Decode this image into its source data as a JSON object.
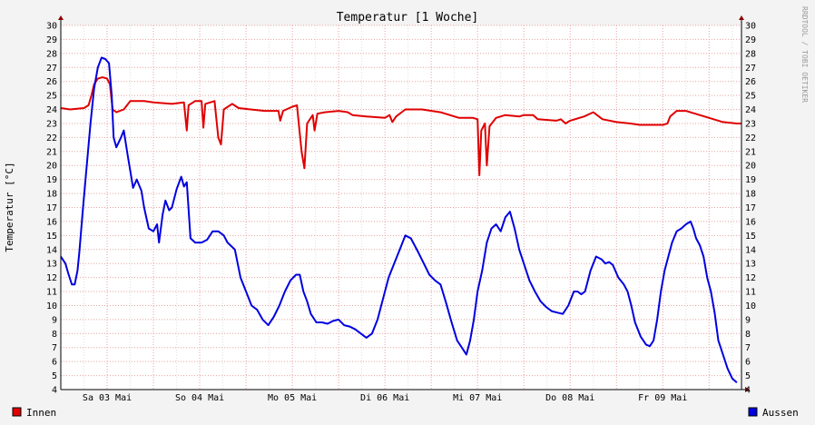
{
  "chart_data": {
    "type": "line",
    "title": "Temperatur [1 Woche]",
    "ylabel": "Temperatur [°C]",
    "xlabel": "",
    "watermark": "RRDTOOL / TOBI OETIKER",
    "ylim": [
      4,
      30
    ],
    "y_ticks": [
      4,
      5,
      6,
      7,
      8,
      9,
      10,
      11,
      12,
      13,
      14,
      15,
      16,
      17,
      18,
      19,
      20,
      21,
      22,
      23,
      24,
      25,
      26,
      27,
      28,
      29,
      30
    ],
    "x_range_days": [
      0,
      7.35
    ],
    "x_ticks": [
      {
        "label": "Sa 03 Mai",
        "day": 0.5
      },
      {
        "label": "So 04 Mai",
        "day": 1.5
      },
      {
        "label": "Mo 05 Mai",
        "day": 2.5
      },
      {
        "label": "Di 06 Mai",
        "day": 3.5
      },
      {
        "label": "Mi 07 Mai",
        "day": 4.5
      },
      {
        "label": "Do 08 Mai",
        "day": 5.5
      },
      {
        "label": "Fr 09 Mai",
        "day": 6.5
      }
    ],
    "grid": true,
    "legend_position": "bottom",
    "series": [
      {
        "name": "Innen",
        "color": "#e00000",
        "points": [
          [
            0.0,
            24.1
          ],
          [
            0.1,
            24.0
          ],
          [
            0.25,
            24.1
          ],
          [
            0.3,
            24.3
          ],
          [
            0.33,
            25.0
          ],
          [
            0.36,
            25.8
          ],
          [
            0.4,
            26.2
          ],
          [
            0.45,
            26.3
          ],
          [
            0.5,
            26.2
          ],
          [
            0.53,
            25.8
          ],
          [
            0.56,
            24.0
          ],
          [
            0.6,
            23.8
          ],
          [
            0.68,
            24.0
          ],
          [
            0.75,
            24.6
          ],
          [
            0.9,
            24.6
          ],
          [
            1.0,
            24.5
          ],
          [
            1.2,
            24.4
          ],
          [
            1.33,
            24.5
          ],
          [
            1.36,
            22.5
          ],
          [
            1.38,
            24.3
          ],
          [
            1.45,
            24.6
          ],
          [
            1.52,
            24.6
          ],
          [
            1.54,
            22.7
          ],
          [
            1.56,
            24.4
          ],
          [
            1.66,
            24.6
          ],
          [
            1.7,
            22.0
          ],
          [
            1.73,
            21.5
          ],
          [
            1.76,
            24.0
          ],
          [
            1.85,
            24.4
          ],
          [
            1.92,
            24.1
          ],
          [
            2.05,
            24.0
          ],
          [
            2.2,
            23.9
          ],
          [
            2.35,
            23.9
          ],
          [
            2.37,
            23.2
          ],
          [
            2.4,
            23.9
          ],
          [
            2.5,
            24.2
          ],
          [
            2.55,
            24.3
          ],
          [
            2.6,
            21.0
          ],
          [
            2.63,
            19.8
          ],
          [
            2.66,
            23.0
          ],
          [
            2.72,
            23.6
          ],
          [
            2.74,
            22.5
          ],
          [
            2.77,
            23.7
          ],
          [
            2.85,
            23.8
          ],
          [
            3.0,
            23.9
          ],
          [
            3.1,
            23.8
          ],
          [
            3.15,
            23.6
          ],
          [
            3.3,
            23.5
          ],
          [
            3.5,
            23.4
          ],
          [
            3.55,
            23.6
          ],
          [
            3.58,
            23.1
          ],
          [
            3.62,
            23.5
          ],
          [
            3.72,
            24.0
          ],
          [
            3.9,
            24.0
          ],
          [
            4.1,
            23.8
          ],
          [
            4.3,
            23.4
          ],
          [
            4.45,
            23.4
          ],
          [
            4.5,
            23.3
          ],
          [
            4.52,
            19.3
          ],
          [
            4.54,
            22.5
          ],
          [
            4.58,
            23.0
          ],
          [
            4.6,
            20.0
          ],
          [
            4.63,
            22.8
          ],
          [
            4.7,
            23.4
          ],
          [
            4.8,
            23.6
          ],
          [
            4.95,
            23.5
          ],
          [
            5.0,
            23.6
          ],
          [
            5.1,
            23.6
          ],
          [
            5.15,
            23.3
          ],
          [
            5.35,
            23.2
          ],
          [
            5.4,
            23.3
          ],
          [
            5.45,
            23.0
          ],
          [
            5.5,
            23.2
          ],
          [
            5.65,
            23.5
          ],
          [
            5.75,
            23.8
          ],
          [
            5.85,
            23.3
          ],
          [
            6.0,
            23.1
          ],
          [
            6.15,
            23.0
          ],
          [
            6.25,
            22.9
          ],
          [
            6.4,
            22.9
          ],
          [
            6.5,
            22.9
          ],
          [
            6.55,
            23.0
          ],
          [
            6.58,
            23.5
          ],
          [
            6.65,
            23.9
          ],
          [
            6.75,
            23.9
          ],
          [
            6.85,
            23.7
          ],
          [
            7.0,
            23.4
          ],
          [
            7.15,
            23.1
          ],
          [
            7.3,
            23.0
          ],
          [
            7.35,
            23.0
          ]
        ]
      },
      {
        "name": "Aussen",
        "color": "#0000e0",
        "points": [
          [
            0.0,
            13.5
          ],
          [
            0.05,
            13.0
          ],
          [
            0.08,
            12.3
          ],
          [
            0.12,
            11.5
          ],
          [
            0.15,
            11.5
          ],
          [
            0.18,
            12.5
          ],
          [
            0.2,
            13.8
          ],
          [
            0.24,
            17.0
          ],
          [
            0.28,
            20.0
          ],
          [
            0.32,
            23.0
          ],
          [
            0.36,
            25.5
          ],
          [
            0.4,
            27.0
          ],
          [
            0.44,
            27.7
          ],
          [
            0.48,
            27.6
          ],
          [
            0.52,
            27.3
          ],
          [
            0.55,
            25.0
          ],
          [
            0.57,
            22.0
          ],
          [
            0.6,
            21.3
          ],
          [
            0.65,
            22.0
          ],
          [
            0.68,
            22.5
          ],
          [
            0.72,
            20.8
          ],
          [
            0.76,
            19.2
          ],
          [
            0.78,
            18.4
          ],
          [
            0.82,
            19.0
          ],
          [
            0.87,
            18.2
          ],
          [
            0.9,
            17.0
          ],
          [
            0.95,
            15.5
          ],
          [
            1.0,
            15.3
          ],
          [
            1.04,
            15.8
          ],
          [
            1.06,
            14.5
          ],
          [
            1.1,
            16.5
          ],
          [
            1.13,
            17.5
          ],
          [
            1.17,
            16.8
          ],
          [
            1.2,
            17.0
          ],
          [
            1.25,
            18.3
          ],
          [
            1.3,
            19.2
          ],
          [
            1.33,
            18.5
          ],
          [
            1.36,
            18.8
          ],
          [
            1.4,
            14.8
          ],
          [
            1.45,
            14.5
          ],
          [
            1.52,
            14.5
          ],
          [
            1.58,
            14.7
          ],
          [
            1.64,
            15.3
          ],
          [
            1.7,
            15.3
          ],
          [
            1.76,
            15.0
          ],
          [
            1.8,
            14.5
          ],
          [
            1.88,
            14.0
          ],
          [
            1.94,
            12.0
          ],
          [
            2.0,
            11.0
          ],
          [
            2.06,
            10.0
          ],
          [
            2.12,
            9.7
          ],
          [
            2.18,
            9.0
          ],
          [
            2.24,
            8.6
          ],
          [
            2.3,
            9.2
          ],
          [
            2.36,
            10.0
          ],
          [
            2.42,
            11.0
          ],
          [
            2.48,
            11.8
          ],
          [
            2.54,
            12.2
          ],
          [
            2.58,
            12.2
          ],
          [
            2.62,
            11.0
          ],
          [
            2.66,
            10.3
          ],
          [
            2.7,
            9.4
          ],
          [
            2.76,
            8.8
          ],
          [
            2.82,
            8.8
          ],
          [
            2.88,
            8.7
          ],
          [
            2.94,
            8.9
          ],
          [
            3.0,
            9.0
          ],
          [
            3.06,
            8.6
          ],
          [
            3.12,
            8.5
          ],
          [
            3.18,
            8.3
          ],
          [
            3.24,
            8.0
          ],
          [
            3.3,
            7.7
          ],
          [
            3.36,
            8.0
          ],
          [
            3.42,
            9.0
          ],
          [
            3.48,
            10.5
          ],
          [
            3.54,
            12.0
          ],
          [
            3.6,
            13.0
          ],
          [
            3.66,
            14.0
          ],
          [
            3.72,
            15.0
          ],
          [
            3.78,
            14.8
          ],
          [
            3.82,
            14.3
          ],
          [
            3.86,
            13.8
          ],
          [
            3.92,
            13.0
          ],
          [
            3.98,
            12.2
          ],
          [
            4.04,
            11.8
          ],
          [
            4.1,
            11.5
          ],
          [
            4.16,
            10.2
          ],
          [
            4.22,
            8.8
          ],
          [
            4.28,
            7.5
          ],
          [
            4.34,
            6.9
          ],
          [
            4.38,
            6.5
          ],
          [
            4.42,
            7.5
          ],
          [
            4.46,
            9.0
          ],
          [
            4.5,
            11.0
          ],
          [
            4.55,
            12.5
          ],
          [
            4.6,
            14.5
          ],
          [
            4.65,
            15.5
          ],
          [
            4.7,
            15.8
          ],
          [
            4.75,
            15.3
          ],
          [
            4.8,
            16.3
          ],
          [
            4.85,
            16.7
          ],
          [
            4.9,
            15.5
          ],
          [
            4.95,
            14.0
          ],
          [
            5.0,
            13.0
          ],
          [
            5.06,
            11.8
          ],
          [
            5.12,
            11.0
          ],
          [
            5.18,
            10.3
          ],
          [
            5.24,
            9.9
          ],
          [
            5.3,
            9.6
          ],
          [
            5.36,
            9.5
          ],
          [
            5.42,
            9.4
          ],
          [
            5.48,
            10.0
          ],
          [
            5.54,
            11.0
          ],
          [
            5.58,
            11.0
          ],
          [
            5.62,
            10.8
          ],
          [
            5.66,
            11.0
          ],
          [
            5.72,
            12.5
          ],
          [
            5.78,
            13.5
          ],
          [
            5.84,
            13.3
          ],
          [
            5.88,
            13.0
          ],
          [
            5.92,
            13.1
          ],
          [
            5.96,
            12.9
          ],
          [
            6.02,
            12.0
          ],
          [
            6.08,
            11.5
          ],
          [
            6.12,
            11.0
          ],
          [
            6.16,
            10.0
          ],
          [
            6.2,
            8.8
          ],
          [
            6.26,
            7.8
          ],
          [
            6.32,
            7.2
          ],
          [
            6.36,
            7.1
          ],
          [
            6.4,
            7.5
          ],
          [
            6.44,
            9.0
          ],
          [
            6.48,
            11.0
          ],
          [
            6.52,
            12.5
          ],
          [
            6.56,
            13.5
          ],
          [
            6.6,
            14.5
          ],
          [
            6.65,
            15.3
          ],
          [
            6.7,
            15.5
          ],
          [
            6.75,
            15.8
          ],
          [
            6.8,
            16.0
          ],
          [
            6.83,
            15.5
          ],
          [
            6.86,
            14.8
          ],
          [
            6.9,
            14.3
          ],
          [
            6.94,
            13.5
          ],
          [
            6.98,
            12.0
          ],
          [
            7.02,
            11.0
          ],
          [
            7.06,
            9.5
          ],
          [
            7.1,
            7.5
          ],
          [
            7.15,
            6.5
          ],
          [
            7.2,
            5.5
          ],
          [
            7.25,
            4.8
          ],
          [
            7.3,
            4.5
          ]
        ]
      }
    ]
  }
}
